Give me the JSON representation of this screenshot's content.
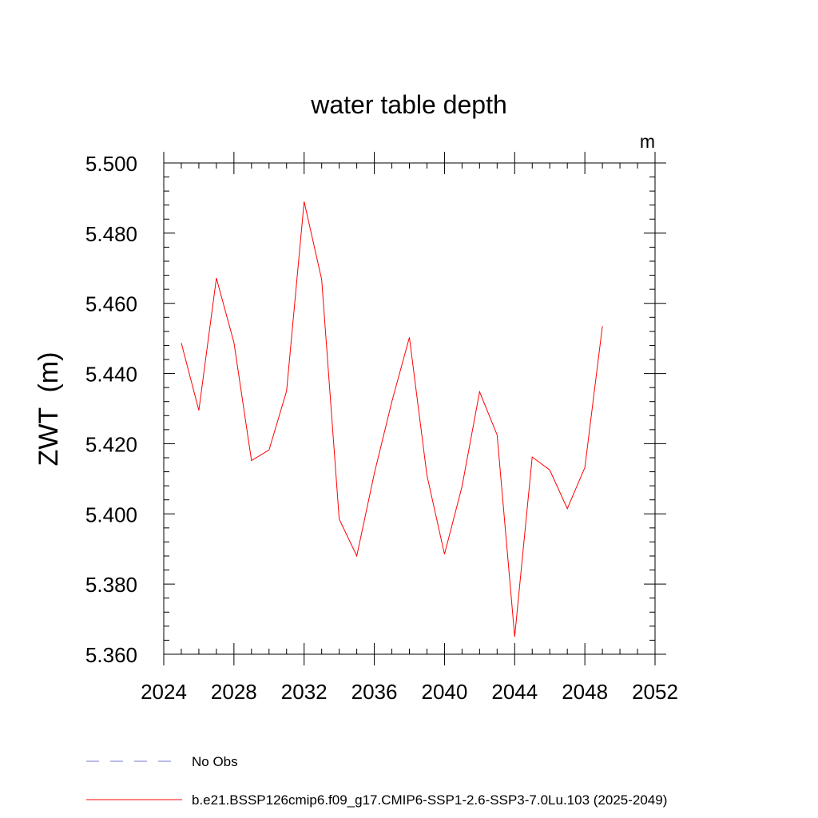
{
  "chart_data": {
    "type": "line",
    "title": "water table depth",
    "units_label": "m",
    "ylabel": "ZWT  (m)",
    "xlabel": "",
    "xlim": [
      2024,
      2052
    ],
    "ylim": [
      5.36,
      5.5
    ],
    "x_major_ticks": [
      2024,
      2028,
      2032,
      2036,
      2040,
      2044,
      2048,
      2052
    ],
    "x_tick_labels": [
      "2024",
      "2028",
      "2032",
      "2036",
      "2040",
      "2044",
      "2048",
      "2052"
    ],
    "y_major_ticks": [
      5.36,
      5.38,
      5.4,
      5.42,
      5.44,
      5.46,
      5.48,
      5.5
    ],
    "y_tick_labels": [
      "5.360",
      "5.380",
      "5.400",
      "5.420",
      "5.440",
      "5.460",
      "5.480",
      "5.500"
    ],
    "x_minor_step": 1,
    "y_minor_step": 0.004,
    "grid": false,
    "series": [
      {
        "name": "b.e21.BSSP126cmip6.f09_g17.CMIP6-SSP1-2.6-SSP3-7.0Lu.103 (2025-2049)",
        "color": "#ff0000",
        "x": [
          2025,
          2026,
          2027,
          2028,
          2029,
          2030,
          2031,
          2032,
          2033,
          2034,
          2035,
          2036,
          2037,
          2038,
          2039,
          2040,
          2041,
          2042,
          2043,
          2044,
          2045,
          2046,
          2047,
          2048,
          2049
        ],
        "values": [
          5.4487,
          5.4295,
          5.4672,
          5.4488,
          5.4152,
          5.4182,
          5.435,
          5.489,
          5.4668,
          5.3985,
          5.388,
          5.4115,
          5.432,
          5.4503,
          5.411,
          5.3885,
          5.4078,
          5.4348,
          5.4225,
          5.365,
          5.4162,
          5.4125,
          5.4015,
          5.4132,
          5.4535
        ]
      }
    ],
    "legend": [
      {
        "label": "No Obs",
        "style": "dashed",
        "color": "#7777cc"
      },
      {
        "label": "b.e21.BSSP126cmip6.f09_g17.CMIP6-SSP1-2.6-SSP3-7.0Lu.103 (2025-2049)",
        "style": "solid",
        "color": "#ff0000"
      }
    ],
    "legend_position": "bottom-left"
  }
}
